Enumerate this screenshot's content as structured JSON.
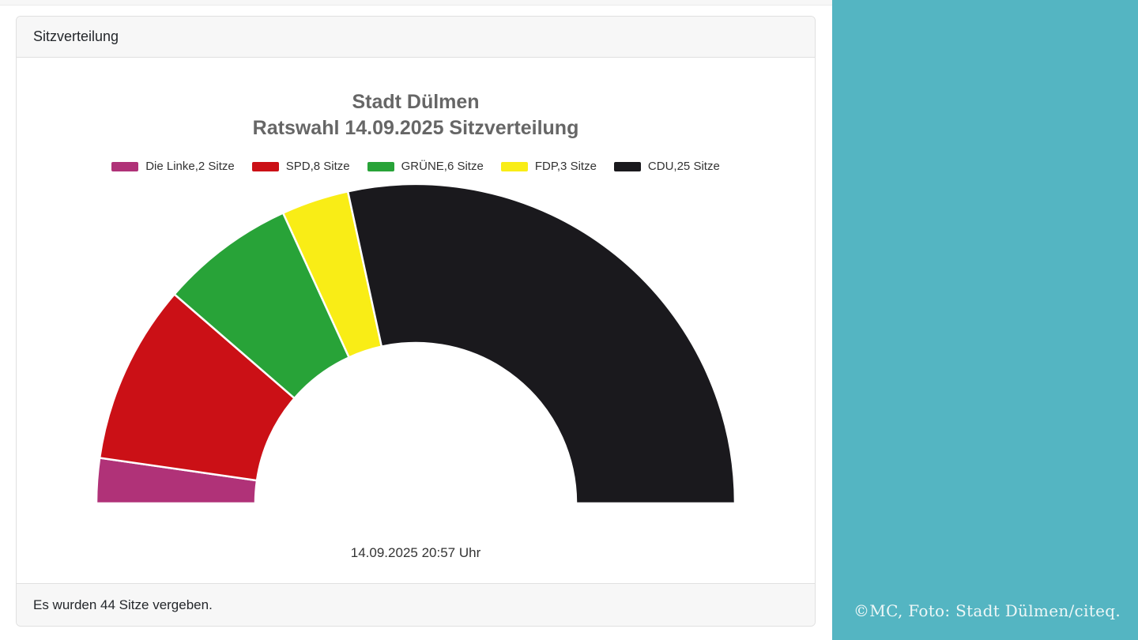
{
  "card": {
    "header_title": "Sitzverteilung",
    "footer_text": "Es wurden 44 Sitze vergeben."
  },
  "credit": {
    "text": "©MC, Foto: Stadt Dülmen/citeq."
  },
  "colors": {
    "accent_teal": "#54b5c2",
    "card_bg": "#f7f7f7",
    "card_border": "#e0e0e0",
    "title_text": "#666666",
    "legend_text": "#333333"
  },
  "chart_data": {
    "type": "pie",
    "subtype": "half-donut",
    "title_line1": "Stadt Dülmen",
    "title_line2": "Ratswahl 14.09.2025 Sitzverteilung",
    "subtitle": "14.09.2025 20:57 Uhr",
    "total_seats": 44,
    "start_angle_deg": 180,
    "end_angle_deg": 0,
    "inner_radius_pct": 50,
    "legend_position": "top",
    "series": [
      {
        "name": "Die Linke",
        "seats": 2,
        "label": "Die Linke,2 Sitze",
        "color": "#b03278"
      },
      {
        "name": "SPD",
        "seats": 8,
        "label": "SPD,8 Sitze",
        "color": "#cb1016"
      },
      {
        "name": "GRÜNE",
        "seats": 6,
        "label": "GRÜNE,6 Sitze",
        "color": "#28a338"
      },
      {
        "name": "FDP",
        "seats": 3,
        "label": "FDP,3 Sitze",
        "color": "#f9ed16"
      },
      {
        "name": "CDU",
        "seats": 25,
        "label": "CDU,25 Sitze",
        "color": "#1a191d"
      }
    ]
  }
}
